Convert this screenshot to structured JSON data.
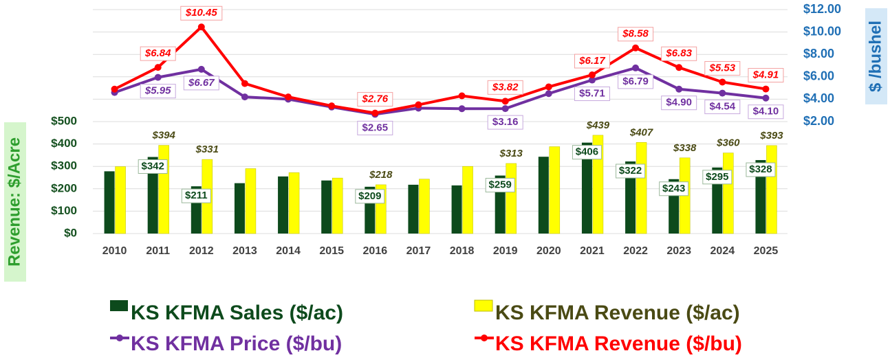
{
  "chart_data": {
    "type": "bar_line",
    "categories": [
      "2010",
      "2011",
      "2012",
      "2013",
      "2014",
      "2015",
      "2016",
      "2017",
      "2018",
      "2019",
      "2020",
      "2021",
      "2022",
      "2023",
      "2024",
      "2025"
    ],
    "y_label": "Revenue: $/Acre",
    "y2_label": "$ /bushel",
    "ylim": [
      0,
      1000
    ],
    "yticks": [
      {
        "value": 0,
        "label": "$0"
      },
      {
        "value": 100,
        "label": "$100"
      },
      {
        "value": 200,
        "label": "$200"
      },
      {
        "value": 300,
        "label": "$300"
      },
      {
        "value": 400,
        "label": "$400"
      },
      {
        "value": 500,
        "label": "$500"
      }
    ],
    "y2lim": [
      -8,
      12
    ],
    "y2ticks": [
      {
        "value": 2,
        "label": "$2.00"
      },
      {
        "value": 4,
        "label": "$4.00"
      },
      {
        "value": 6,
        "label": "$6.00"
      },
      {
        "value": 8,
        "label": "$8.00"
      },
      {
        "value": 10,
        "label": "$10.00"
      },
      {
        "value": 12,
        "label": "$12.00"
      }
    ],
    "grid": true,
    "legend": "bottom",
    "series": [
      {
        "name": "KS KFMA Sales ($/ac)",
        "type": "bar",
        "color": "#0d4a1c",
        "text_color": "#0d4a1c",
        "values": [
          278,
          342,
          211,
          225,
          255,
          237,
          209,
          218,
          215,
          259,
          343,
          406,
          322,
          243,
          295,
          328
        ],
        "value_labels": [
          null,
          "$342",
          "$211",
          null,
          null,
          null,
          "$209",
          null,
          null,
          "$259",
          null,
          "$406",
          "$322",
          "$243",
          "$295",
          "$328"
        ]
      },
      {
        "name": "KS KFMA Revenue ($/ac)",
        "type": "bar",
        "color": "#ffff00",
        "text_color": "#4a4a14",
        "values": [
          299,
          394,
          331,
          290,
          272,
          248,
          218,
          243,
          300,
          313,
          388,
          439,
          407,
          338,
          360,
          393
        ],
        "value_labels": [
          null,
          "$394",
          "$331",
          null,
          null,
          null,
          "$218",
          null,
          null,
          "$313",
          null,
          "$439",
          "$407",
          "$338",
          "$360",
          "$393"
        ]
      },
      {
        "name": "KS KFMA Price ($/bu)",
        "type": "line",
        "axis": "y2",
        "color": "#7030a0",
        "text_color": "#7030a0",
        "values": [
          4.6,
          5.95,
          6.67,
          4.2,
          4.0,
          3.3,
          2.65,
          3.2,
          3.15,
          3.16,
          4.5,
          5.71,
          6.79,
          4.9,
          4.54,
          4.1
        ],
        "value_labels": [
          null,
          "$5.95",
          "$6.67",
          null,
          null,
          null,
          "$2.65",
          null,
          null,
          "$3.16",
          null,
          "$5.71",
          "$6.79",
          "$4.90",
          "$4.54",
          "$4.10"
        ]
      },
      {
        "name": "KS KFMA Revenue ($/bu)",
        "type": "line",
        "axis": "y2",
        "color": "#ff0000",
        "text_color": "#ff0000",
        "values": [
          4.9,
          6.84,
          10.45,
          5.4,
          4.2,
          3.4,
          2.76,
          3.5,
          4.3,
          3.82,
          5.1,
          6.17,
          8.58,
          6.83,
          5.53,
          4.91
        ],
        "value_labels": [
          null,
          "$6.84",
          "$10.45",
          null,
          null,
          null,
          "$2.76",
          null,
          null,
          "$3.82",
          null,
          "$6.17",
          "$8.58",
          "$6.83",
          "$5.53",
          "$4.91"
        ]
      }
    ]
  }
}
